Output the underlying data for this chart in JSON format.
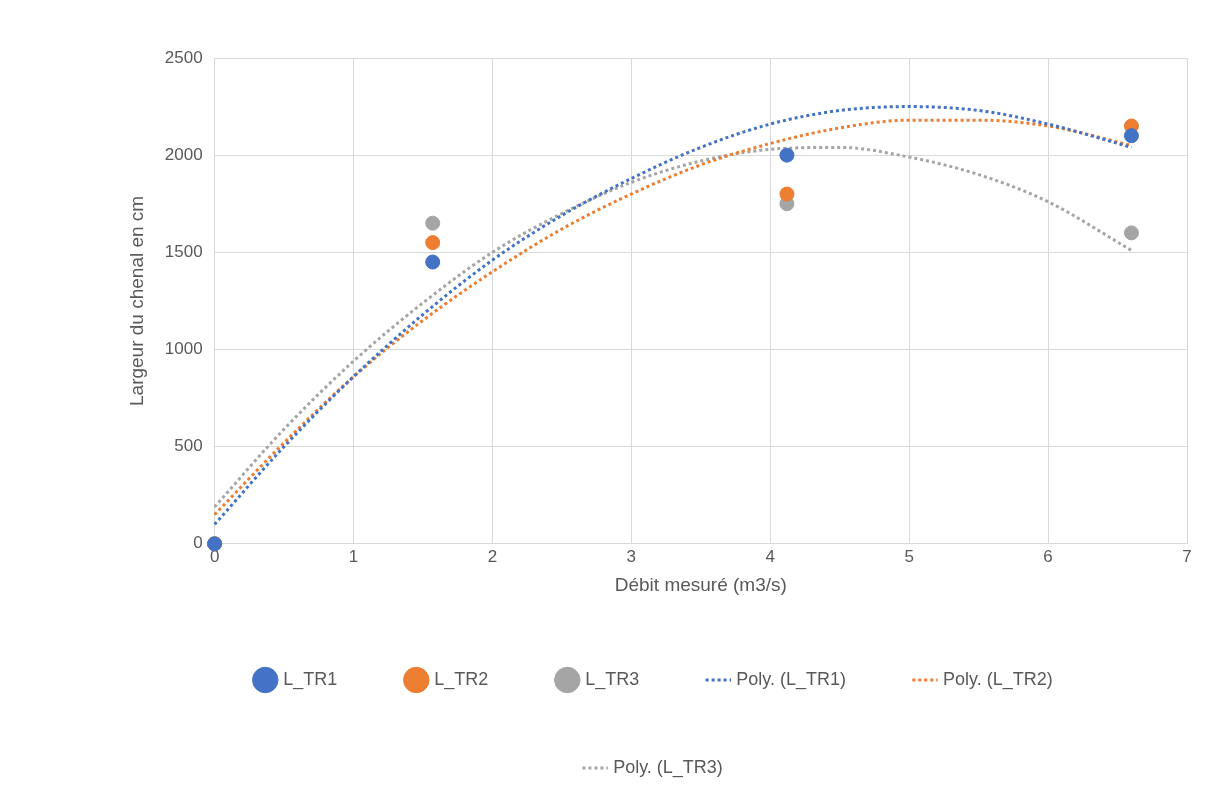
{
  "chart_data": {
    "type": "scatter",
    "xlabel": "Débit mesuré (m3/s)",
    "ylabel": "Largeur du chenal en cm",
    "xlim": [
      0,
      7
    ],
    "xticks": [
      0,
      1,
      2,
      3,
      4,
      5,
      6,
      7
    ],
    "ylim": [
      0,
      2500
    ],
    "yticks": [
      0,
      500,
      1000,
      1500,
      2000,
      2500
    ],
    "grid": true,
    "legend": "bottom",
    "series": [
      {
        "name": "L_TR1",
        "type": "scatter",
        "marker": "circle",
        "color": "#4472c4",
        "x": [
          0,
          1.57,
          4.12,
          6.6
        ],
        "values": [
          0,
          1450,
          2000,
          2100
        ]
      },
      {
        "name": "L_TR2",
        "type": "scatter",
        "marker": "circle",
        "color": "#ed7d31",
        "x": [
          0,
          1.57,
          4.12,
          6.6
        ],
        "values": [
          0,
          1550,
          1800,
          2150
        ]
      },
      {
        "name": "L_TR3",
        "type": "scatter",
        "marker": "circle",
        "color": "#a5a5a5",
        "x": [
          0,
          1.57,
          4.12,
          6.6
        ],
        "values": [
          0,
          1650,
          1750,
          1600
        ]
      },
      {
        "name": "Poly. (L_TR1)",
        "type": "line",
        "line_style": "dotted",
        "color": "#4472c4",
        "x": [
          0,
          0.5,
          1,
          1.5,
          2,
          2.5,
          3,
          3.5,
          4,
          4.5,
          5,
          5.5,
          6,
          6.6
        ],
        "values": [
          100,
          500,
          860,
          1180,
          1460,
          1690,
          1880,
          2040,
          2160,
          2230,
          2250,
          2230,
          2160,
          2040
        ]
      },
      {
        "name": "Poly. (L_TR2)",
        "type": "line",
        "line_style": "dotted",
        "color": "#ed7d31",
        "x": [
          0,
          0.5,
          1,
          1.5,
          2,
          2.5,
          3,
          3.5,
          4,
          4.5,
          5,
          5.5,
          6,
          6.6
        ],
        "values": [
          150,
          520,
          860,
          1150,
          1400,
          1620,
          1800,
          1950,
          2060,
          2140,
          2180,
          2180,
          2150,
          2050
        ]
      },
      {
        "name": "Poly. (L_TR3)",
        "type": "line",
        "line_style": "dotted",
        "color": "#a5a5a5",
        "x": [
          0,
          0.5,
          1,
          1.5,
          2,
          2.5,
          3,
          3.5,
          4,
          4.5,
          5,
          5.5,
          6,
          6.6
        ],
        "values": [
          190,
          590,
          940,
          1240,
          1500,
          1700,
          1860,
          1970,
          2030,
          2040,
          1990,
          1900,
          1760,
          1510
        ]
      }
    ]
  }
}
